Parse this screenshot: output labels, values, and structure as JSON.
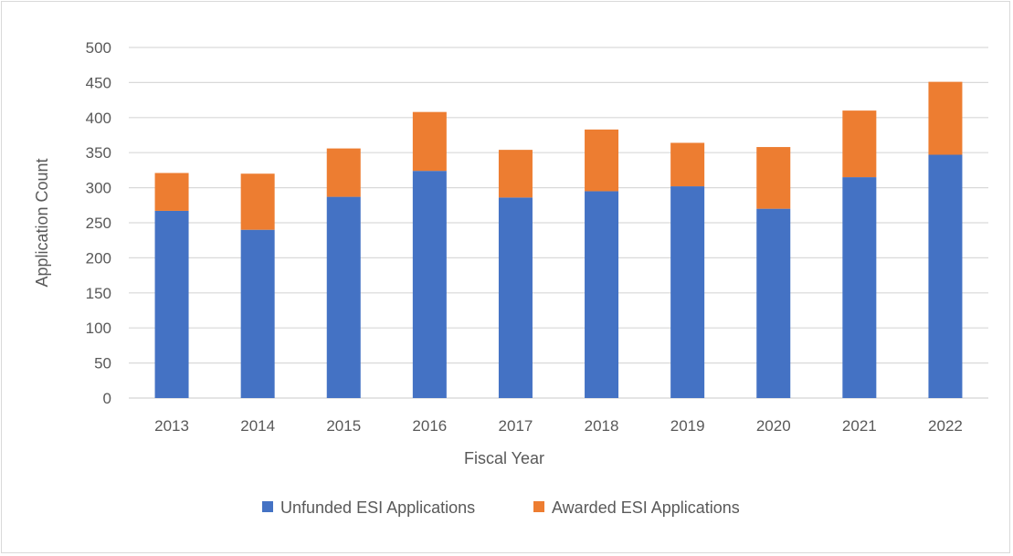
{
  "chart_data": {
    "type": "bar",
    "stacked": true,
    "title": "",
    "xlabel": "Fiscal Year",
    "ylabel": "Application Count",
    "ylim": [
      0,
      500
    ],
    "yticks": [
      0,
      50,
      100,
      150,
      200,
      250,
      300,
      350,
      400,
      450,
      500
    ],
    "grid": true,
    "legend_position": "bottom",
    "categories": [
      "2013",
      "2014",
      "2015",
      "2016",
      "2017",
      "2018",
      "2019",
      "2020",
      "2021",
      "2022"
    ],
    "series": [
      {
        "name": "Unfunded ESI Applications",
        "color": "#4472c4",
        "values": [
          267,
          240,
          287,
          324,
          286,
          295,
          302,
          270,
          315,
          347
        ]
      },
      {
        "name": "Awarded ESI Applications",
        "color": "#ed7d31",
        "values": [
          54,
          80,
          69,
          84,
          68,
          88,
          62,
          88,
          95,
          104
        ]
      }
    ]
  }
}
